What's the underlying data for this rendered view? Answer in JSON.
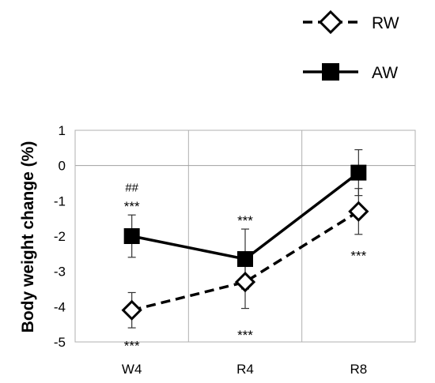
{
  "chart_data": {
    "type": "line",
    "categories": [
      "W4",
      "R4",
      "R8"
    ],
    "ylabel": "Body weight change (%)",
    "ylim": [
      -5,
      1
    ],
    "yticks": [
      1,
      0,
      -1,
      -2,
      -3,
      -4,
      -5
    ],
    "grid": true,
    "legend_position": "top-right",
    "series": [
      {
        "name": "RW",
        "values": [
          -4.1,
          -3.3,
          -1.3
        ],
        "errors": [
          0.5,
          0.75,
          0.65
        ],
        "marker": "diamond-open",
        "line_style": "dashed",
        "color": "#000000"
      },
      {
        "name": "AW",
        "values": [
          -2.0,
          -2.65,
          -0.2
        ],
        "errors": [
          0.6,
          0.85,
          0.65
        ],
        "marker": "square-filled",
        "line_style": "solid",
        "color": "#000000"
      }
    ],
    "annotations": [
      {
        "text": "##",
        "category": "W4",
        "y": -0.6,
        "kind": "hash"
      },
      {
        "text": "***",
        "category": "W4",
        "y": -1.15,
        "kind": "star"
      },
      {
        "text": "***",
        "category": "R4",
        "y": -1.55,
        "kind": "star"
      },
      {
        "text": "***",
        "category": "W4",
        "y": -5.1,
        "kind": "star"
      },
      {
        "text": "***",
        "category": "R4",
        "y": -4.8,
        "kind": "star"
      },
      {
        "text": "***",
        "category": "R8",
        "y": -2.55,
        "kind": "star"
      }
    ]
  }
}
